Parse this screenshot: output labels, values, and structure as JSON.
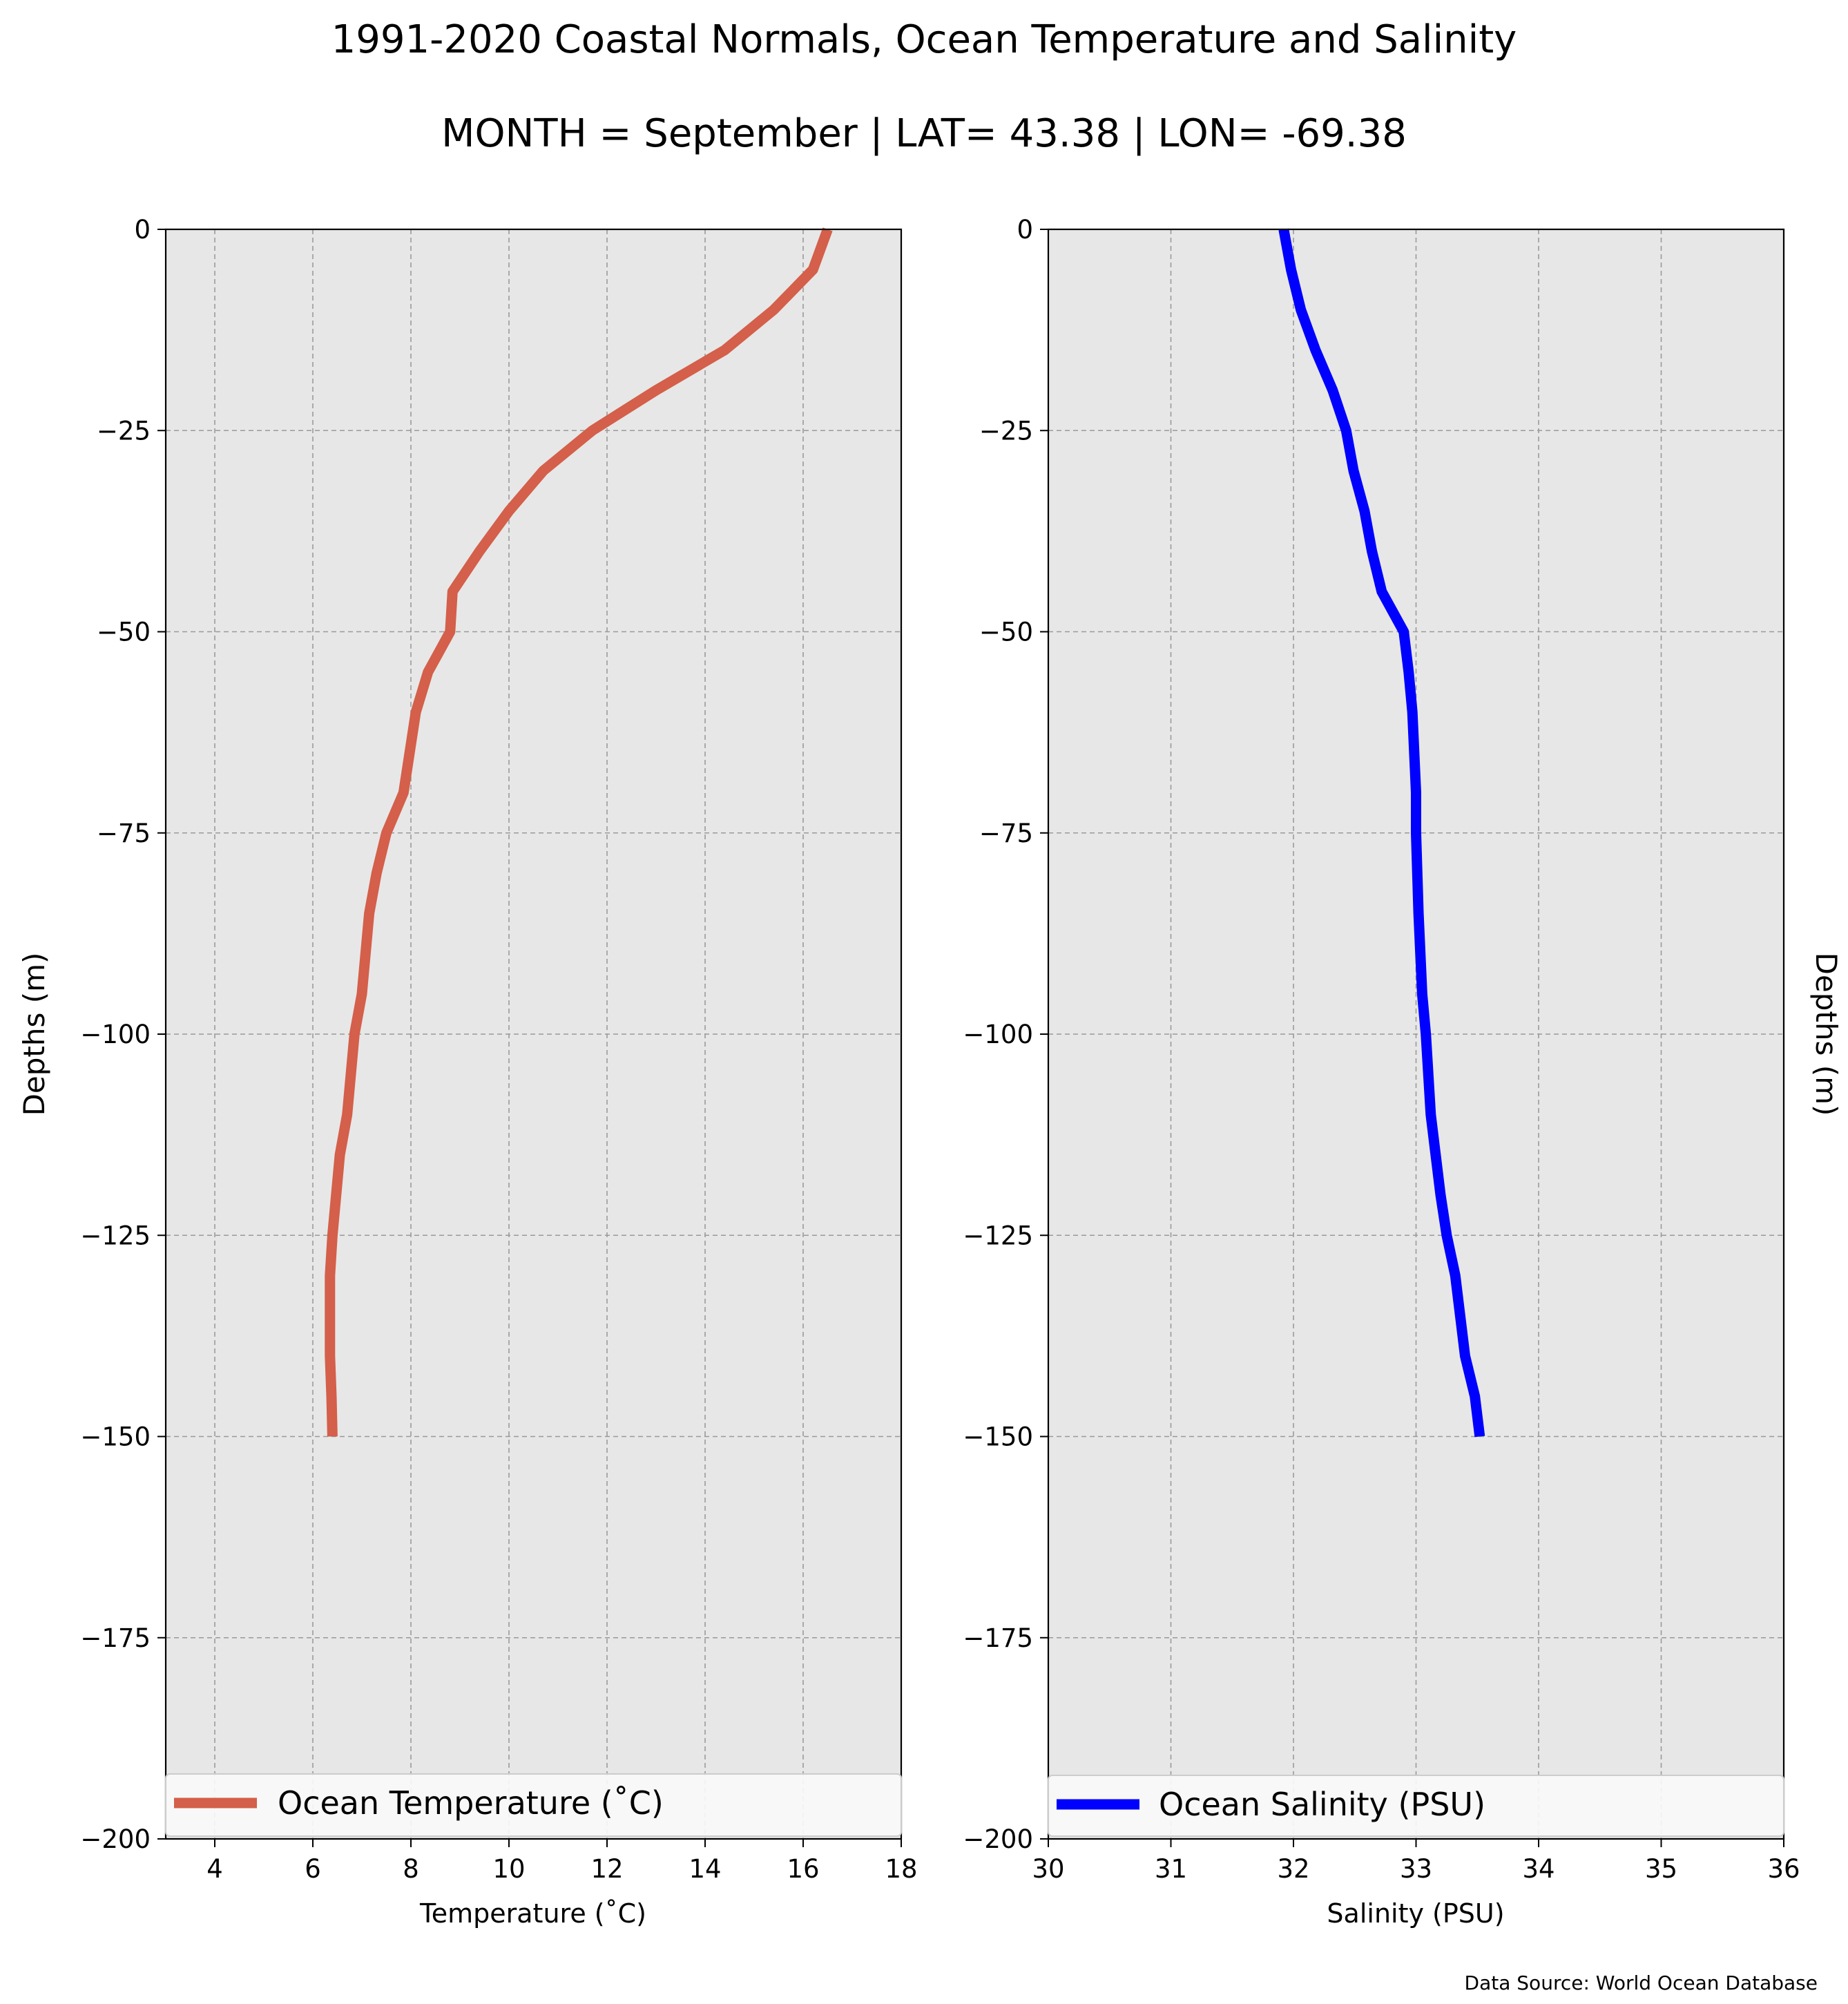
{
  "figure": {
    "title_line1": "1991-2020 Coastal Normals, Ocean Temperature and Salinity",
    "title_line2": "MONTH = September | LAT= 43.38 | LON= -69.38",
    "source_note": "Data Source: World Ocean Database"
  },
  "chart_data": [
    {
      "type": "line",
      "xlabel": "Temperature ($^\\circ$C)",
      "xlabel_display": "Temperature (˚C)",
      "ylabel": "Depths (m)",
      "xlim": [
        3,
        18
      ],
      "ylim": [
        -200,
        0
      ],
      "xticks": [
        4,
        6,
        8,
        10,
        12,
        14,
        16,
        18
      ],
      "xtick_labels": [
        "4",
        "6",
        "8",
        "10",
        "12",
        "14",
        "16",
        "18"
      ],
      "yticks": [
        0,
        -25,
        -50,
        -75,
        -100,
        -125,
        -150,
        -175,
        -200
      ],
      "ytick_labels": [
        "0",
        "−25",
        "−50",
        "−75",
        "−100",
        "−125",
        "−150",
        "−175",
        "−200"
      ],
      "grid": true,
      "legend_position": "lower-center",
      "series": [
        {
          "name": "Ocean Temperature (˚C)",
          "color": "#d45f4a",
          "x": [
            16.5,
            16.2,
            15.4,
            14.4,
            13.0,
            11.7,
            10.7,
            10.0,
            9.4,
            8.85,
            8.8,
            8.35,
            8.1,
            7.85,
            7.5,
            7.3,
            7.15,
            7.0,
            6.85,
            6.7,
            6.55,
            6.4,
            6.35,
            6.35,
            6.38,
            6.4
          ],
          "y": [
            0,
            -5,
            -10,
            -15,
            -20,
            -25,
            -30,
            -35,
            -40,
            -45,
            -50,
            -55,
            -60,
            -70,
            -75,
            -80,
            -85,
            -95,
            -100,
            -110,
            -115,
            -125,
            -130,
            -140,
            -145,
            -150
          ]
        }
      ]
    },
    {
      "type": "line",
      "xlabel": "Salinity (PSU)",
      "ylabel": "Depths (m)",
      "xlim": [
        30,
        36
      ],
      "ylim": [
        -200,
        0
      ],
      "xticks": [
        30,
        31,
        32,
        33,
        34,
        35,
        36
      ],
      "xtick_labels": [
        "30",
        "31",
        "32",
        "33",
        "34",
        "35",
        "36"
      ],
      "yticks": [
        0,
        -25,
        -50,
        -75,
        -100,
        -125,
        -150,
        -175,
        -200
      ],
      "ytick_labels": [
        "0",
        "−25",
        "−50",
        "−75",
        "−100",
        "−125",
        "−150",
        "−175",
        "−200"
      ],
      "grid": true,
      "legend_position": "lower-center",
      "series": [
        {
          "name": "Ocean Salinity (PSU)",
          "color": "#0000ff",
          "x": [
            31.92,
            31.98,
            32.06,
            32.18,
            32.32,
            32.43,
            32.49,
            32.58,
            32.64,
            32.72,
            32.9,
            32.94,
            32.97,
            33.0,
            33.0,
            33.02,
            33.05,
            33.08,
            33.12,
            33.16,
            33.2,
            33.25,
            33.32,
            33.4,
            33.48,
            33.52
          ],
          "y": [
            0,
            -5,
            -10,
            -15,
            -20,
            -25,
            -30,
            -35,
            -40,
            -45,
            -50,
            -55,
            -60,
            -70,
            -75,
            -85,
            -95,
            -100,
            -110,
            -115,
            -120,
            -125,
            -130,
            -140,
            -145,
            -150
          ]
        }
      ]
    }
  ]
}
